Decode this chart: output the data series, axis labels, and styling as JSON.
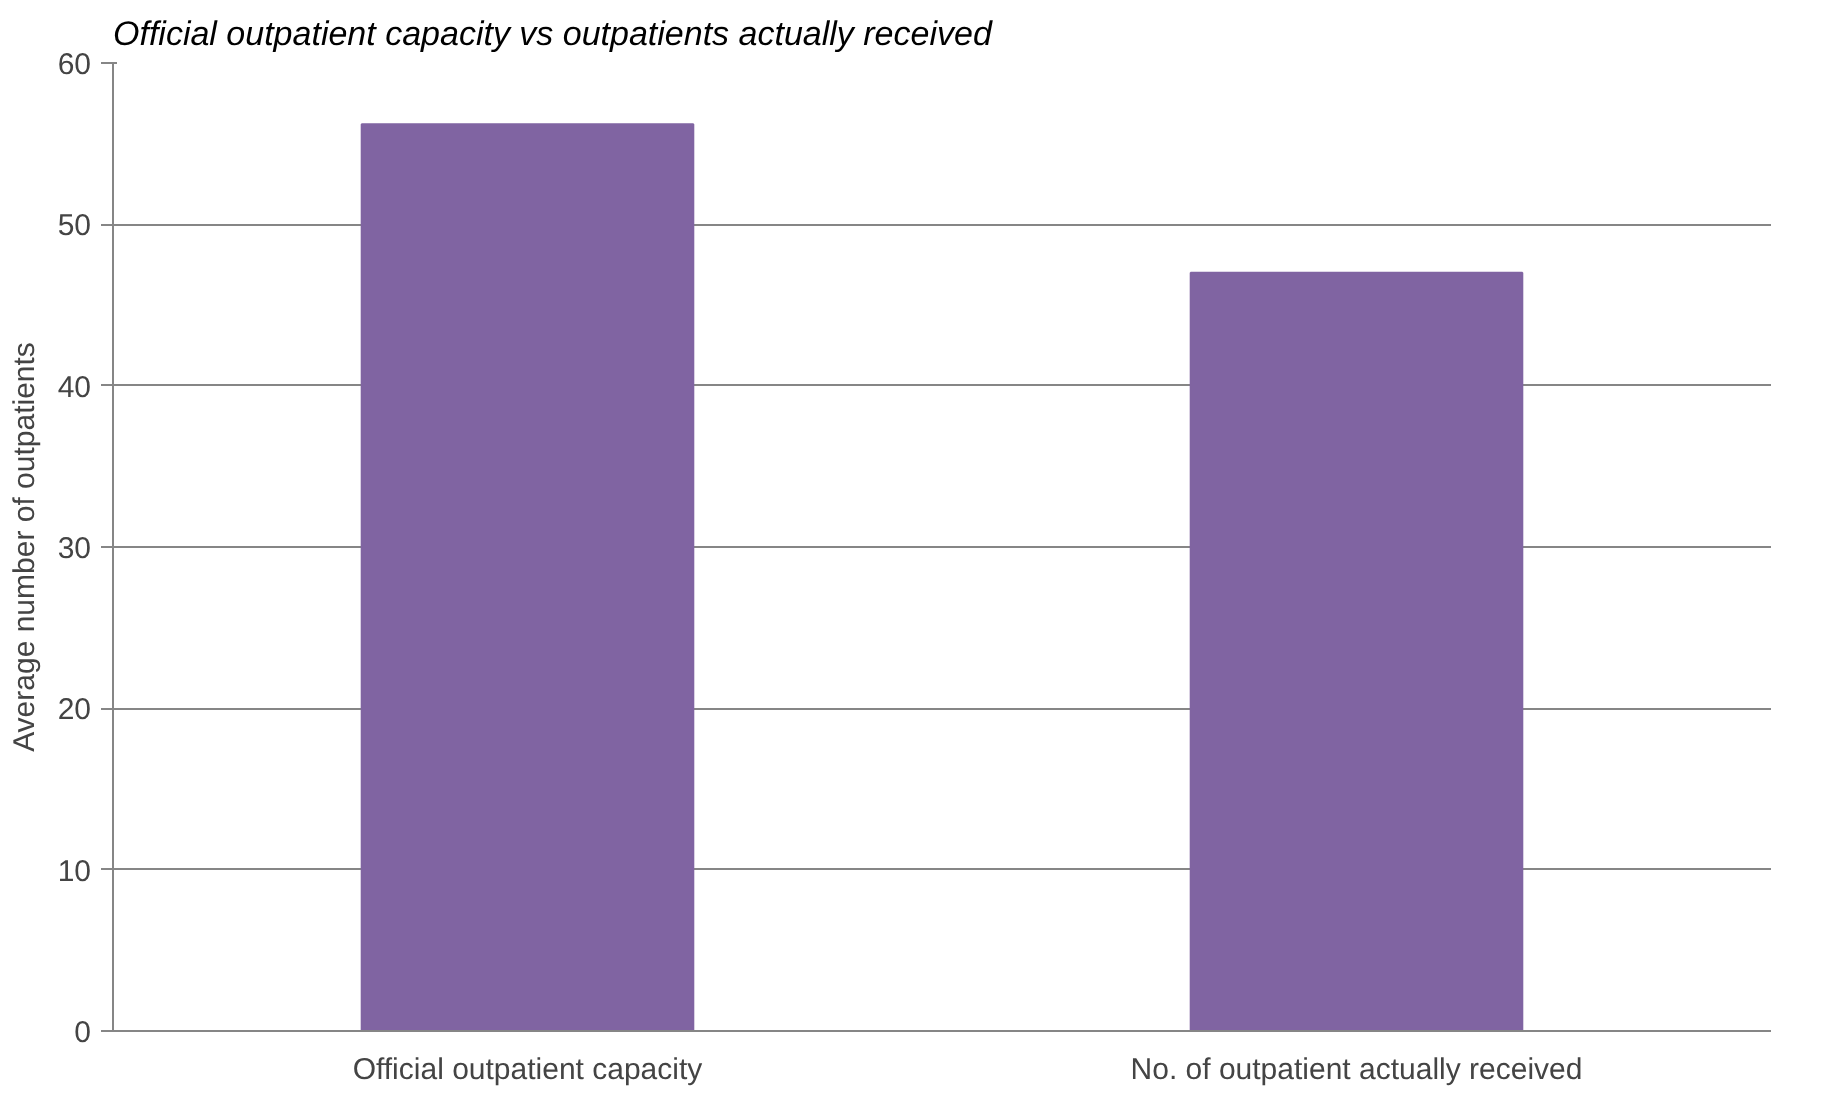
{
  "chart_data": {
    "type": "bar",
    "title": "Official outpatient capacity vs outpatients actually received",
    "ylabel": "Average number of outpatients",
    "categories": [
      "Official outpatient capacity",
      "No. of outpatient actually received"
    ],
    "values": [
      56.2,
      47.0
    ],
    "color": "#8064a2",
    "ylim": [
      0,
      60
    ],
    "yticks": [
      0,
      10,
      20,
      30,
      40,
      50,
      60
    ],
    "grid": "y"
  }
}
